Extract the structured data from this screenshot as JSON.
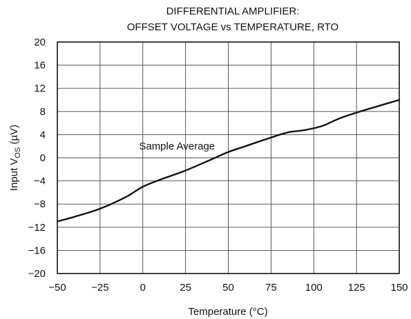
{
  "chart_data": {
    "type": "line",
    "title_lines": [
      "DIFFERENTIAL AMPLIFIER:",
      "OFFSET VOLTAGE vs TEMPERATURE, RTO"
    ],
    "xlabel": "Temperature (°C)",
    "ylabel": {
      "prefix": "Input V",
      "subscript": "OS",
      "suffix": " (µV)"
    },
    "xlim": [
      -50,
      150
    ],
    "ylim": [
      -20,
      20
    ],
    "x_ticks": [
      -50,
      -25,
      0,
      25,
      50,
      75,
      100,
      125,
      150
    ],
    "y_ticks": [
      20,
      16,
      12,
      8,
      4,
      0,
      -4,
      -8,
      -12,
      -16,
      -20
    ],
    "x_tick_labels": [
      "−50",
      "−25",
      "0",
      "25",
      "50",
      "75",
      "100",
      "125",
      "150"
    ],
    "y_tick_labels": [
      "20",
      "16",
      "12",
      "8",
      "4",
      "0",
      "−4",
      "−8",
      "−12",
      "−16",
      "−20"
    ],
    "grid": true,
    "annotation": {
      "text": "Sample Average",
      "x": 20,
      "y": 1.4
    },
    "series": [
      {
        "x": [
          -50,
          -40,
          -25,
          -10,
          0,
          10,
          25,
          40,
          50,
          60,
          75,
          85,
          95,
          105,
          115,
          125,
          135,
          150
        ],
        "y": [
          -11.0,
          -10.2,
          -8.8,
          -6.8,
          -5.0,
          -3.8,
          -2.2,
          -0.3,
          1.0,
          2.0,
          3.5,
          4.4,
          4.8,
          5.5,
          6.8,
          7.8,
          8.7,
          10.0
        ]
      }
    ]
  }
}
